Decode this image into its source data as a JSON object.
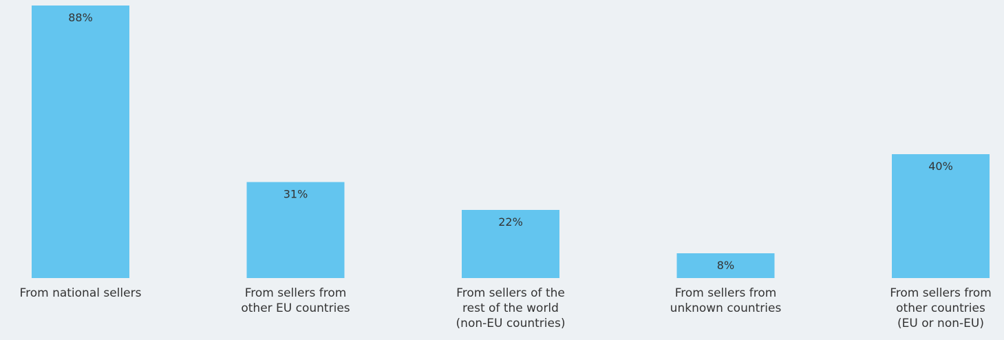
{
  "chart_data": {
    "type": "bar",
    "categories": [
      [
        "From national sellers"
      ],
      [
        "From sellers from",
        "other EU countries"
      ],
      [
        "From sellers of the",
        "rest of the world",
        "(non-EU countries)"
      ],
      [
        "From sellers from",
        "unknown countries"
      ],
      [
        "From sellers from",
        "other countries",
        "(EU or non-EU)"
      ]
    ],
    "values": [
      88,
      31,
      22,
      8,
      40
    ],
    "value_labels": [
      "88%",
      "31%",
      "22%",
      "8%",
      "40%"
    ],
    "title": "",
    "xlabel": "",
    "ylabel": "",
    "ylim": [
      0,
      100
    ],
    "grid": false,
    "legend": "none",
    "bar_color": "#63c5ef",
    "background_color": "#edf1f4"
  }
}
